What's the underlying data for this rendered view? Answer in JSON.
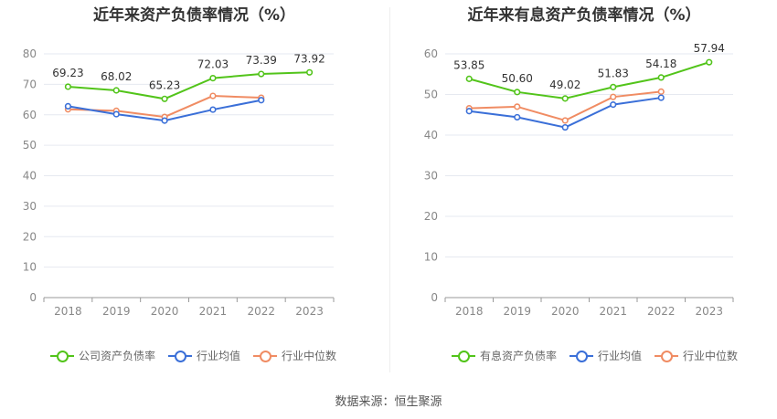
{
  "source": "数据来源：恒生聚源",
  "chart_data": [
    {
      "id": "left",
      "type": "line",
      "title": "近年来资产负债率情况（%）",
      "categories": [
        "2018",
        "2019",
        "2020",
        "2021",
        "2022",
        "2023"
      ],
      "ylim": [
        0,
        80
      ],
      "yticks": [
        0,
        10,
        20,
        30,
        40,
        50,
        60,
        70,
        80
      ],
      "grid": true,
      "legend_position": "bottom",
      "series": [
        {
          "name": "公司资产负债率",
          "color": "#52c41a",
          "values": [
            69.23,
            68.02,
            65.23,
            72.03,
            73.39,
            73.92
          ],
          "labels": [
            "69.23",
            "68.02",
            "65.23",
            "72.03",
            "73.39",
            "73.92"
          ]
        },
        {
          "name": "行业均值",
          "color": "#3a6fd8",
          "values": [
            62.8,
            60.2,
            58.1,
            61.7,
            64.8,
            null
          ]
        },
        {
          "name": "行业中位数",
          "color": "#f08c63",
          "values": [
            61.8,
            61.3,
            59.3,
            66.2,
            65.6,
            null
          ]
        }
      ]
    },
    {
      "id": "right",
      "type": "line",
      "title": "近年来有息资产负债率情况（%）",
      "categories": [
        "2018",
        "2019",
        "2020",
        "2021",
        "2022",
        "2023"
      ],
      "ylim": [
        0,
        60
      ],
      "yticks": [
        0,
        10,
        20,
        30,
        40,
        50,
        60
      ],
      "grid": true,
      "legend_position": "bottom",
      "series": [
        {
          "name": "有息资产负债率",
          "color": "#52c41a",
          "values": [
            53.85,
            50.6,
            49.02,
            51.83,
            54.18,
            57.94
          ],
          "labels": [
            "53.85",
            "50.60",
            "49.02",
            "51.83",
            "54.18",
            "57.94"
          ]
        },
        {
          "name": "行业均值",
          "color": "#3a6fd8",
          "values": [
            45.9,
            44.4,
            41.9,
            47.5,
            49.2,
            null
          ]
        },
        {
          "name": "行业中位数",
          "color": "#f08c63",
          "values": [
            46.6,
            47.0,
            43.6,
            49.4,
            50.7,
            null
          ]
        }
      ]
    }
  ]
}
